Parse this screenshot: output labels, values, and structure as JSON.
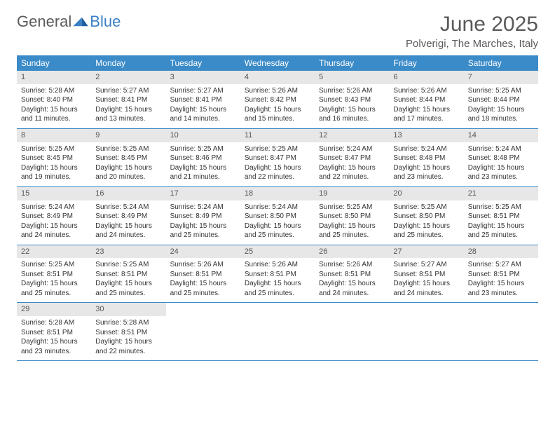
{
  "logo": {
    "word1": "General",
    "word2": "Blue"
  },
  "title": "June 2025",
  "location": "Polverigi, The Marches, Italy",
  "colors": {
    "header_bg": "#3b8bc8",
    "header_text": "#ffffff",
    "daynum_bg": "#e7e7e7",
    "text": "#333333",
    "title_text": "#595959",
    "logo_gray": "#5a5a5a",
    "logo_blue": "#3b7fc4",
    "border": "#3b8bc8"
  },
  "fonts": {
    "title_size": 30,
    "location_size": 15,
    "dayhead_size": 12,
    "body_size": 10
  },
  "layout": {
    "columns": 7,
    "rows": 5,
    "cell_min_height": 78
  },
  "day_names": [
    "Sunday",
    "Monday",
    "Tuesday",
    "Wednesday",
    "Thursday",
    "Friday",
    "Saturday"
  ],
  "days": [
    {
      "n": "1",
      "sr": "5:28 AM",
      "ss": "8:40 PM",
      "dl": "15 hours and 11 minutes."
    },
    {
      "n": "2",
      "sr": "5:27 AM",
      "ss": "8:41 PM",
      "dl": "15 hours and 13 minutes."
    },
    {
      "n": "3",
      "sr": "5:27 AM",
      "ss": "8:41 PM",
      "dl": "15 hours and 14 minutes."
    },
    {
      "n": "4",
      "sr": "5:26 AM",
      "ss": "8:42 PM",
      "dl": "15 hours and 15 minutes."
    },
    {
      "n": "5",
      "sr": "5:26 AM",
      "ss": "8:43 PM",
      "dl": "15 hours and 16 minutes."
    },
    {
      "n": "6",
      "sr": "5:26 AM",
      "ss": "8:44 PM",
      "dl": "15 hours and 17 minutes."
    },
    {
      "n": "7",
      "sr": "5:25 AM",
      "ss": "8:44 PM",
      "dl": "15 hours and 18 minutes."
    },
    {
      "n": "8",
      "sr": "5:25 AM",
      "ss": "8:45 PM",
      "dl": "15 hours and 19 minutes."
    },
    {
      "n": "9",
      "sr": "5:25 AM",
      "ss": "8:45 PM",
      "dl": "15 hours and 20 minutes."
    },
    {
      "n": "10",
      "sr": "5:25 AM",
      "ss": "8:46 PM",
      "dl": "15 hours and 21 minutes."
    },
    {
      "n": "11",
      "sr": "5:25 AM",
      "ss": "8:47 PM",
      "dl": "15 hours and 22 minutes."
    },
    {
      "n": "12",
      "sr": "5:24 AM",
      "ss": "8:47 PM",
      "dl": "15 hours and 22 minutes."
    },
    {
      "n": "13",
      "sr": "5:24 AM",
      "ss": "8:48 PM",
      "dl": "15 hours and 23 minutes."
    },
    {
      "n": "14",
      "sr": "5:24 AM",
      "ss": "8:48 PM",
      "dl": "15 hours and 23 minutes."
    },
    {
      "n": "15",
      "sr": "5:24 AM",
      "ss": "8:49 PM",
      "dl": "15 hours and 24 minutes."
    },
    {
      "n": "16",
      "sr": "5:24 AM",
      "ss": "8:49 PM",
      "dl": "15 hours and 24 minutes."
    },
    {
      "n": "17",
      "sr": "5:24 AM",
      "ss": "8:49 PM",
      "dl": "15 hours and 25 minutes."
    },
    {
      "n": "18",
      "sr": "5:24 AM",
      "ss": "8:50 PM",
      "dl": "15 hours and 25 minutes."
    },
    {
      "n": "19",
      "sr": "5:25 AM",
      "ss": "8:50 PM",
      "dl": "15 hours and 25 minutes."
    },
    {
      "n": "20",
      "sr": "5:25 AM",
      "ss": "8:50 PM",
      "dl": "15 hours and 25 minutes."
    },
    {
      "n": "21",
      "sr": "5:25 AM",
      "ss": "8:51 PM",
      "dl": "15 hours and 25 minutes."
    },
    {
      "n": "22",
      "sr": "5:25 AM",
      "ss": "8:51 PM",
      "dl": "15 hours and 25 minutes."
    },
    {
      "n": "23",
      "sr": "5:25 AM",
      "ss": "8:51 PM",
      "dl": "15 hours and 25 minutes."
    },
    {
      "n": "24",
      "sr": "5:26 AM",
      "ss": "8:51 PM",
      "dl": "15 hours and 25 minutes."
    },
    {
      "n": "25",
      "sr": "5:26 AM",
      "ss": "8:51 PM",
      "dl": "15 hours and 25 minutes."
    },
    {
      "n": "26",
      "sr": "5:26 AM",
      "ss": "8:51 PM",
      "dl": "15 hours and 24 minutes."
    },
    {
      "n": "27",
      "sr": "5:27 AM",
      "ss": "8:51 PM",
      "dl": "15 hours and 24 minutes."
    },
    {
      "n": "28",
      "sr": "5:27 AM",
      "ss": "8:51 PM",
      "dl": "15 hours and 23 minutes."
    },
    {
      "n": "29",
      "sr": "5:28 AM",
      "ss": "8:51 PM",
      "dl": "15 hours and 23 minutes."
    },
    {
      "n": "30",
      "sr": "5:28 AM",
      "ss": "8:51 PM",
      "dl": "15 hours and 22 minutes."
    }
  ],
  "labels": {
    "sunrise": "Sunrise:",
    "sunset": "Sunset:",
    "daylight": "Daylight:"
  },
  "start_offset": 0,
  "total_cells": 35
}
